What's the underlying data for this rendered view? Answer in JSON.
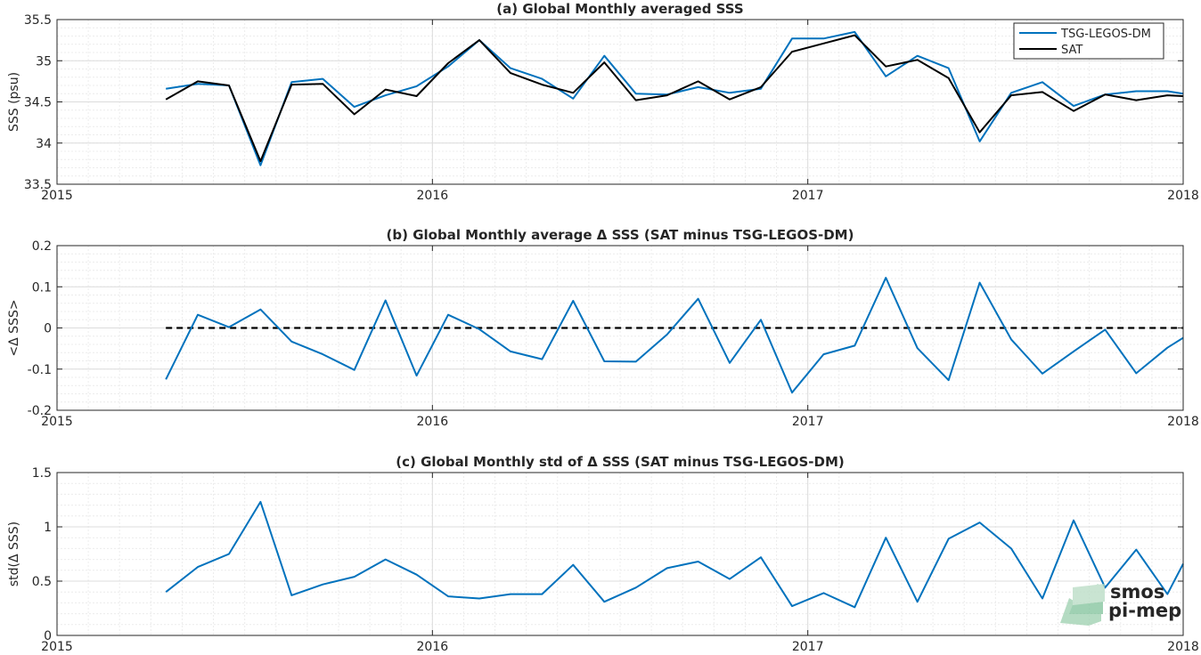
{
  "colors": {
    "tsg": "#0072BD",
    "sat": "#000000",
    "grid_major": "#dcdcdc",
    "grid_minor": "#ececec",
    "axis": "#262626",
    "logo": "#6ab98a"
  },
  "logo": {
    "line1": "smos",
    "line2": "pi-mep"
  },
  "chart_data": [
    {
      "type": "line",
      "title": "(a) Global Monthly averaged SSS",
      "ylabel": "SSS (psu)",
      "xlim": [
        2015,
        2018
      ],
      "ylim": [
        33.5,
        35.5
      ],
      "xticks": [
        2015,
        2016,
        2017,
        2018
      ],
      "xtick_labels": [
        "2015",
        "2016",
        "2017",
        "2018"
      ],
      "yticks": [
        33.5,
        34,
        34.5,
        35,
        35.5
      ],
      "ytick_labels": [
        "33.5",
        "34",
        "34.5",
        "35",
        "35.5"
      ],
      "grid": true,
      "legend": "top-right",
      "x": [
        2015.29,
        2015.375,
        2015.458,
        2015.542,
        2015.625,
        2015.708,
        2015.792,
        2015.875,
        2015.958,
        2016.042,
        2016.125,
        2016.208,
        2016.292,
        2016.375,
        2016.458,
        2016.542,
        2016.625,
        2016.708,
        2016.792,
        2016.875,
        2016.958,
        2017.042,
        2017.125,
        2017.208,
        2017.292,
        2017.375,
        2017.458,
        2017.542,
        2017.625,
        2017.708,
        2017.792,
        2017.875,
        2017.958,
        2018.0
      ],
      "series": [
        {
          "name": "TSG-LEGOS-DM",
          "values": [
            34.66,
            34.72,
            34.7,
            33.73,
            34.74,
            34.78,
            34.44,
            34.58,
            34.69,
            34.93,
            35.25,
            34.91,
            34.78,
            34.54,
            35.06,
            34.6,
            34.59,
            34.68,
            34.61,
            34.66,
            35.27,
            35.27,
            35.35,
            34.81,
            35.06,
            34.91,
            34.02,
            34.61,
            34.74,
            34.45,
            34.59,
            34.63,
            34.63,
            34.6
          ]
        },
        {
          "name": "SAT",
          "values": [
            34.53,
            34.75,
            34.7,
            33.78,
            34.71,
            34.72,
            34.35,
            34.65,
            34.57,
            34.97,
            35.25,
            34.85,
            34.71,
            34.61,
            34.98,
            34.52,
            34.58,
            34.75,
            34.53,
            34.68,
            35.11,
            35.21,
            35.31,
            34.93,
            35.01,
            34.79,
            34.13,
            34.58,
            34.62,
            34.39,
            34.59,
            34.52,
            34.58,
            34.57
          ]
        }
      ]
    },
    {
      "type": "line",
      "title": "(b) Global Monthly average Δ SSS (SAT minus TSG-LEGOS-DM)",
      "ylabel": "<Δ SSS>",
      "xlim": [
        2015,
        2018
      ],
      "ylim": [
        -0.2,
        0.2
      ],
      "xticks": [
        2015,
        2016,
        2017,
        2018
      ],
      "xtick_labels": [
        "2015",
        "2016",
        "2017",
        "2018"
      ],
      "yticks": [
        -0.2,
        -0.1,
        0,
        0.1,
        0.2
      ],
      "ytick_labels": [
        "-0.2",
        "-0.1",
        "0",
        "0.1",
        "0.2"
      ],
      "grid": true,
      "reference_line": {
        "y": 0,
        "x_from": 2015.29,
        "x_to": 2018.0
      },
      "x": [
        2015.29,
        2015.375,
        2015.458,
        2015.542,
        2015.625,
        2015.708,
        2015.792,
        2015.875,
        2015.958,
        2016.042,
        2016.125,
        2016.208,
        2016.292,
        2016.375,
        2016.458,
        2016.542,
        2016.625,
        2016.708,
        2016.792,
        2016.875,
        2016.958,
        2017.042,
        2017.125,
        2017.208,
        2017.292,
        2017.375,
        2017.458,
        2017.542,
        2017.625,
        2017.708,
        2017.792,
        2017.875,
        2017.958,
        2018.0
      ],
      "series": [
        {
          "name": "",
          "values": [
            -0.125,
            0.032,
            0.002,
            0.045,
            -0.033,
            -0.064,
            -0.102,
            0.067,
            -0.116,
            0.032,
            -0.003,
            -0.057,
            -0.076,
            0.066,
            -0.081,
            -0.082,
            -0.016,
            0.071,
            -0.085,
            0.02,
            -0.157,
            -0.064,
            -0.043,
            0.122,
            -0.049,
            -0.127,
            0.11,
            -0.028,
            -0.111,
            -0.057,
            -0.004,
            -0.11,
            -0.048,
            -0.024
          ]
        }
      ]
    },
    {
      "type": "line",
      "title": "(c) Global Monthly std of Δ SSS (SAT minus TSG-LEGOS-DM)",
      "ylabel": "std(Δ SSS)",
      "xlim": [
        2015,
        2018
      ],
      "ylim": [
        0,
        1.5
      ],
      "xticks": [
        2015,
        2016,
        2017,
        2018
      ],
      "xtick_labels": [
        "2015",
        "2016",
        "2017",
        "2018"
      ],
      "yticks": [
        0,
        0.5,
        1,
        1.5
      ],
      "ytick_labels": [
        "0",
        "0.5",
        "1",
        "1.5"
      ],
      "grid": true,
      "x": [
        2015.29,
        2015.375,
        2015.458,
        2015.542,
        2015.625,
        2015.708,
        2015.792,
        2015.875,
        2015.958,
        2016.042,
        2016.125,
        2016.208,
        2016.292,
        2016.375,
        2016.458,
        2016.542,
        2016.625,
        2016.708,
        2016.792,
        2016.875,
        2016.958,
        2017.042,
        2017.125,
        2017.208,
        2017.292,
        2017.375,
        2017.458,
        2017.542,
        2017.625,
        2017.708,
        2017.792,
        2017.875,
        2017.958,
        2018.0
      ],
      "series": [
        {
          "name": "",
          "values": [
            0.4,
            0.63,
            0.75,
            1.23,
            0.37,
            0.47,
            0.54,
            0.7,
            0.56,
            0.36,
            0.34,
            0.38,
            0.38,
            0.65,
            0.31,
            0.44,
            0.62,
            0.68,
            0.52,
            0.72,
            0.27,
            0.39,
            0.26,
            0.9,
            0.31,
            0.89,
            1.04,
            0.8,
            0.34,
            1.06,
            0.44,
            0.79,
            0.38,
            0.66
          ]
        }
      ]
    }
  ]
}
